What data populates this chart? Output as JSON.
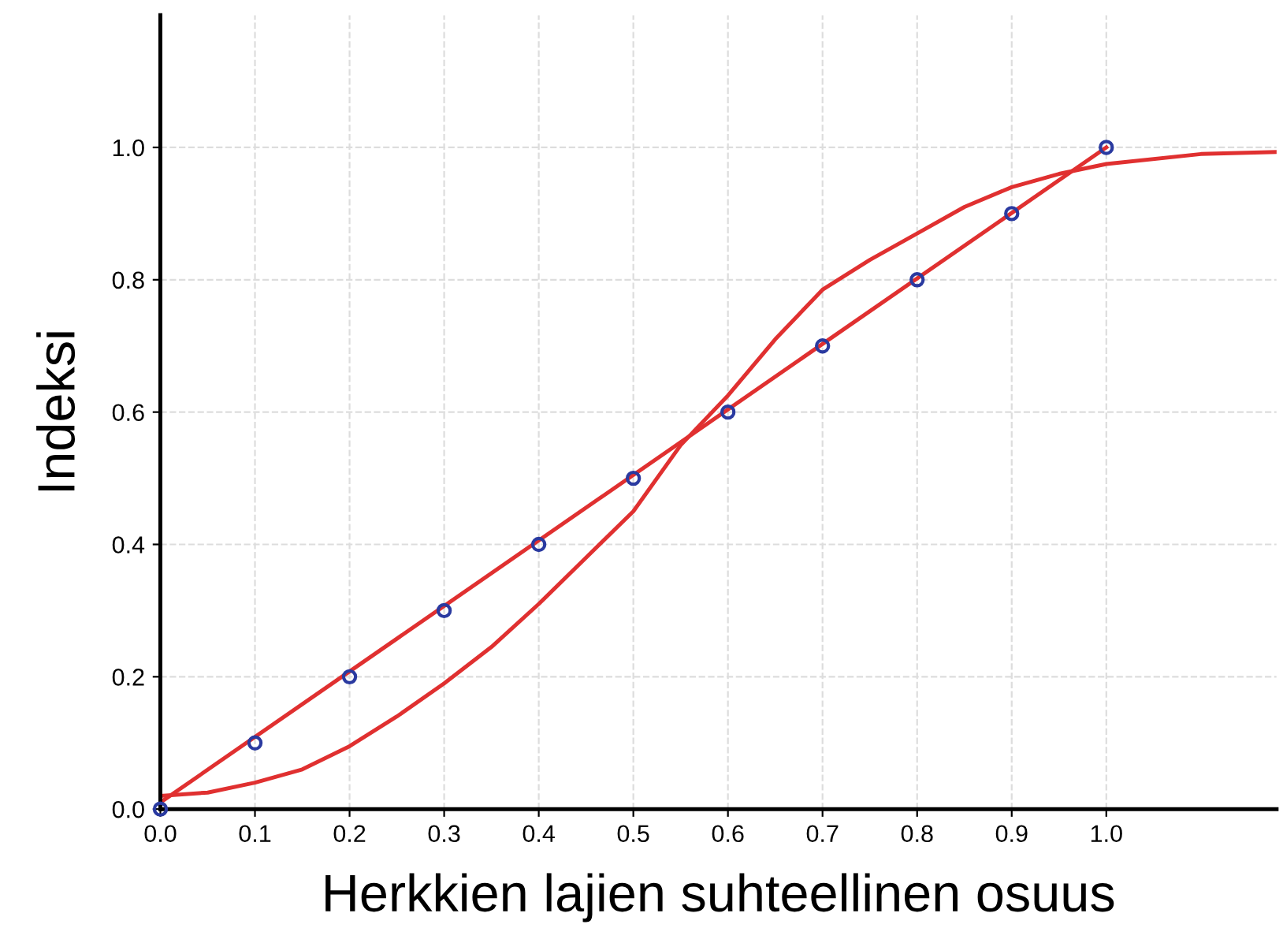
{
  "chart_data": {
    "type": "scatter",
    "xlabel": "Herkkien lajien suhteellinen osuus",
    "ylabel": "Indeksi",
    "xlim": [
      0,
      1.18
    ],
    "ylim": [
      0,
      1.2
    ],
    "xticks": [
      {
        "value": 0,
        "label": "0.0"
      },
      {
        "value": 0.1,
        "label": "0.1"
      },
      {
        "value": 0.2,
        "label": "0.2"
      },
      {
        "value": 0.3,
        "label": "0.3"
      },
      {
        "value": 0.4,
        "label": "0.4"
      },
      {
        "value": 0.5,
        "label": "0.5"
      },
      {
        "value": 0.6,
        "label": "0.6"
      },
      {
        "value": 0.7,
        "label": "0.7"
      },
      {
        "value": 0.8,
        "label": "0.8"
      },
      {
        "value": 0.9,
        "label": "0.9"
      },
      {
        "value": 1,
        "label": "1.0"
      }
    ],
    "yticks": [
      {
        "value": 0,
        "label": "0.0"
      },
      {
        "value": 0.2,
        "label": "0.2"
      },
      {
        "value": 0.4,
        "label": "0.4"
      },
      {
        "value": 0.6,
        "label": "0.6"
      },
      {
        "value": 0.8,
        "label": "0.8"
      },
      {
        "value": 1,
        "label": "1.0"
      }
    ],
    "grid": true,
    "legend": false,
    "series": [
      {
        "type": "line",
        "color": "#e03030",
        "x": [
          0,
          1
        ],
        "values": [
          0.01,
          1.0
        ],
        "marker": "none"
      },
      {
        "type": "line",
        "color": "#e03030",
        "x": [
          0,
          0.05,
          0.1,
          0.15,
          0.2,
          0.25,
          0.3,
          0.35,
          0.4,
          0.45,
          0.5,
          0.55,
          0.6,
          0.65,
          0.7,
          0.75,
          0.8,
          0.85,
          0.9,
          0.95,
          1.0,
          1.1,
          1.18
        ],
        "values": [
          0.02,
          0.025,
          0.04,
          0.06,
          0.095,
          0.14,
          0.19,
          0.245,
          0.31,
          0.38,
          0.45,
          0.55,
          0.625,
          0.71,
          0.785,
          0.83,
          0.87,
          0.91,
          0.94,
          0.96,
          0.975,
          0.99,
          0.993
        ],
        "marker": "none"
      },
      {
        "color": "#2a3aa0",
        "x": [
          0,
          0.1,
          0.2,
          0.3,
          0.4,
          0.5,
          0.6,
          0.7,
          0.8,
          0.9,
          1.0
        ],
        "values": [
          0,
          0.1,
          0.2,
          0.3,
          0.4,
          0.5,
          0.6,
          0.7,
          0.8,
          0.9,
          1.0
        ],
        "marker": "circle"
      }
    ]
  }
}
